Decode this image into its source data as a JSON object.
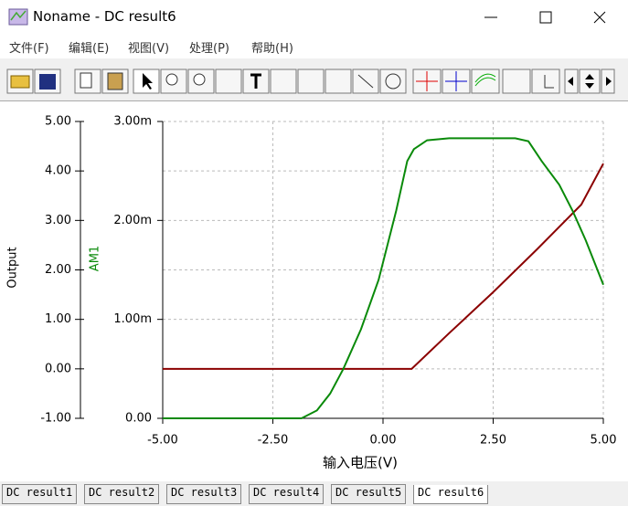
{
  "window": {
    "title": "Noname - DC result6",
    "menu": [
      "文件(F)",
      "编辑(E)",
      "视图(V)",
      "处理(P)",
      "帮助(H)"
    ],
    "tabs": [
      "DC result1",
      "DC result2",
      "DC result3",
      "DC result4",
      "DC result5",
      "DC result6"
    ]
  },
  "chart_data": {
    "type": "line",
    "xlabel": "输入电压(V)",
    "xlim": [
      -5,
      5
    ],
    "xticks": [
      {
        "value": -5,
        "label": "-5.00"
      },
      {
        "value": -2.5,
        "label": "-2.50"
      },
      {
        "value": 0,
        "label": "0.00"
      },
      {
        "value": 2.5,
        "label": "2.50"
      },
      {
        "value": 5,
        "label": "5.00"
      }
    ],
    "ylim": [
      -1,
      5
    ],
    "yticks": [
      {
        "value": -1,
        "label": "-1.00"
      },
      {
        "value": 0,
        "label": "0.00"
      },
      {
        "value": 1,
        "label": "1.00"
      },
      {
        "value": 2,
        "label": "2.00"
      },
      {
        "value": 3,
        "label": "3.00"
      },
      {
        "value": 4,
        "label": "4.00"
      },
      {
        "value": 5,
        "label": "5.00"
      }
    ],
    "y2lim": [
      0,
      0.003
    ],
    "y2ticks": [
      {
        "value": 0,
        "label": "0.00"
      },
      {
        "value": 0.001,
        "label": "1.00m"
      },
      {
        "value": 0.002,
        "label": "2.00m"
      },
      {
        "value": 0.003,
        "label": "3.00m"
      }
    ],
    "grid": true,
    "series": [
      {
        "name": "Output",
        "color": "#8b0000",
        "axis": "y",
        "x": [
          -5,
          0.65,
          1.5,
          2.5,
          3.5,
          4.5,
          5
        ],
        "values": [
          0,
          0,
          0.72,
          1.55,
          2.42,
          3.32,
          4.15
        ]
      },
      {
        "name": "AM1",
        "color": "#0a8a0a",
        "axis": "y2",
        "x": [
          -5,
          -1.85,
          -1.5,
          -1.2,
          -0.9,
          -0.5,
          -0.1,
          0.3,
          0.55,
          0.7,
          1.0,
          1.5,
          2.5,
          3.0,
          3.3,
          3.6,
          4.0,
          4.3,
          4.6,
          5
        ],
        "values": [
          0,
          0,
          8e-05,
          0.00025,
          0.0005,
          0.0009,
          0.0014,
          0.0021,
          0.0026,
          0.00272,
          0.00281,
          0.00283,
          0.00283,
          0.00283,
          0.0028,
          0.0026,
          0.00236,
          0.0021,
          0.0018,
          0.00135
        ]
      }
    ]
  }
}
